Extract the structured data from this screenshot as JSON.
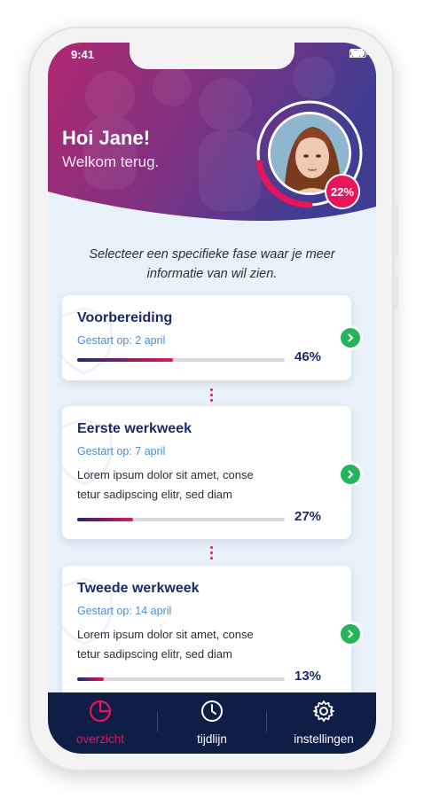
{
  "status_bar": {
    "time": "9:41"
  },
  "header": {
    "greeting": "Hoi Jane!",
    "welcome": "Welkom terug.",
    "progress_percent": 22,
    "progress_label": "22%",
    "colors": {
      "gradient_start": "#b0286f",
      "gradient_end": "#3e3d93",
      "accent": "#e8155a"
    }
  },
  "intro_text": "Selecteer een specifieke fase waar je meer informatie van wil zien.",
  "phases": [
    {
      "title": "Voorbereiding",
      "started": "Gestart op: 2 april",
      "description": "",
      "progress": 46,
      "progress_label": "46%"
    },
    {
      "title": "Eerste werkweek",
      "started": "Gestart op: 7 april",
      "description_line1": "Lorem ipsum dolor sit amet, conse",
      "description_line2": "tetur sadipscing elitr, sed diam",
      "progress": 27,
      "progress_label": "27%"
    },
    {
      "title": "Tweede werkweek",
      "started": "Gestart op: 14 april",
      "description_line1": "Lorem ipsum dolor sit amet, conse",
      "description_line2": "tetur sadipscing elitr, sed diam",
      "progress": 13,
      "progress_label": "13%"
    }
  ],
  "nav": {
    "items": [
      {
        "label": "overzicht",
        "icon": "pie-chart-icon",
        "active": true
      },
      {
        "label": "tijdlijn",
        "icon": "clock-icon",
        "active": false
      },
      {
        "label": "instellingen",
        "icon": "gear-icon",
        "active": false
      }
    ],
    "colors": {
      "background": "#0e1e47",
      "active": "#e8155a",
      "inactive": "#ffffff"
    }
  }
}
